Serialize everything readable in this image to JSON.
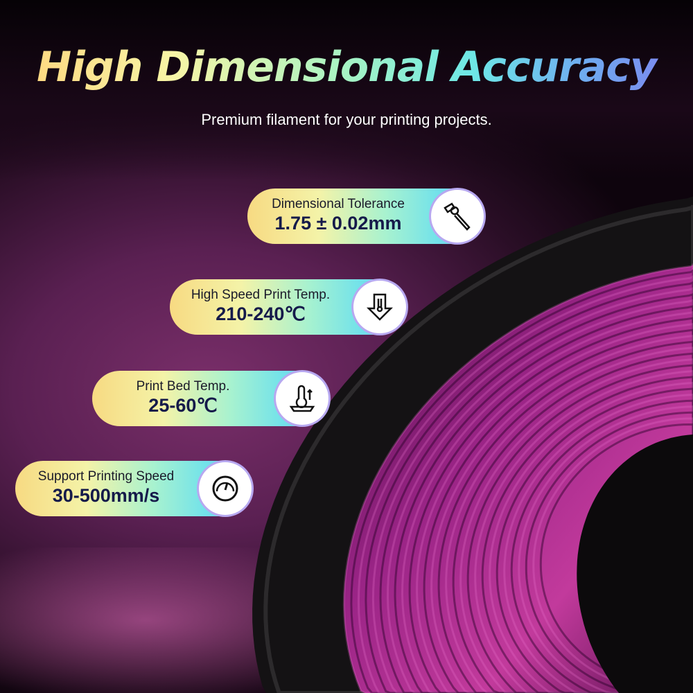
{
  "header": {
    "title": "High Dimensional Accuracy",
    "subtitle": "Premium filament for your printing projects."
  },
  "specs": [
    {
      "label": "Dimensional Tolerance",
      "value": "1.75 ± 0.02mm",
      "icon": "caliper-icon"
    },
    {
      "label": "High Speed Print Temp.",
      "value": "210-240℃",
      "icon": "nozzle-temperature-icon"
    },
    {
      "label": "Print Bed Temp.",
      "value": "25-60℃",
      "icon": "bed-temperature-icon"
    },
    {
      "label": "Support Printing Speed",
      "value": "30-500mm/s",
      "icon": "speedometer-icon"
    }
  ],
  "colors": {
    "filament": "#8e1f7a",
    "spool": "#141214"
  }
}
